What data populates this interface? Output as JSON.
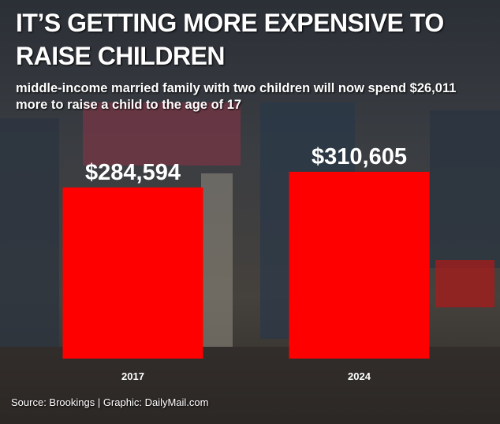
{
  "chart_data": {
    "type": "bar",
    "title": "IT’S GETTING MORE EXPENSIVE TO RAISE CHILDREN",
    "subtitle": "middle-income married family with two children will now spend $26,011 more to raise a child to the age of 17",
    "categories": [
      "2017",
      "2024"
    ],
    "values": [
      284594,
      310605
    ],
    "value_labels": [
      "$284,594",
      "$310,605"
    ],
    "color": "#ff0000",
    "source": "Source: Brookings  |  Graphic: DailyMail.com"
  }
}
